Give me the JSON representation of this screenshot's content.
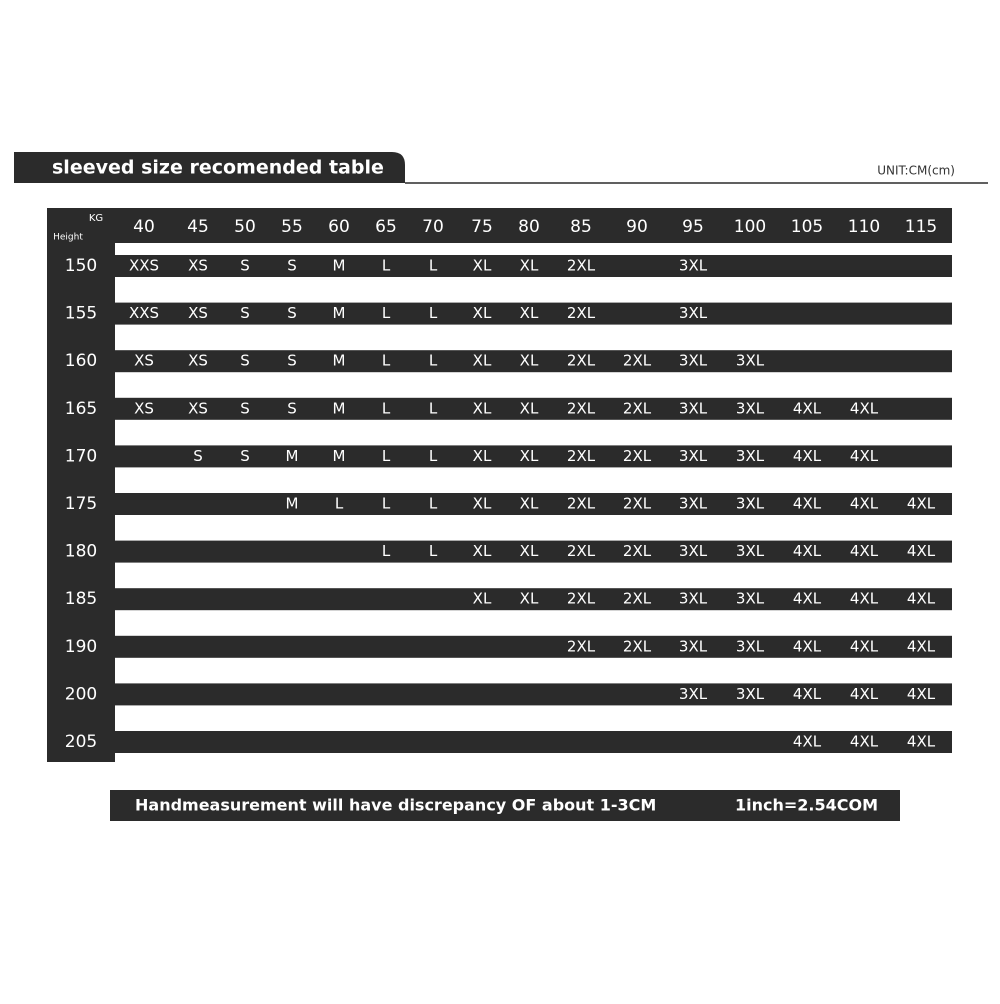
{
  "header": {
    "title": "sleeved size recomended table",
    "unit": "UNIT:CM(cm)"
  },
  "table": {
    "corner_top": "KG",
    "corner_bottom": "Height",
    "columns": [
      "40",
      "45",
      "50",
      "55",
      "60",
      "65",
      "70",
      "75",
      "80",
      "85",
      "90",
      "95",
      "100",
      "105",
      "110",
      "115"
    ],
    "row_labels": [
      "150",
      "155",
      "160",
      "165",
      "170",
      "175",
      "180",
      "185",
      "190",
      "200",
      "205"
    ],
    "rows": [
      [
        "XXS",
        "XS",
        "S",
        "S",
        "M",
        "L",
        "L",
        "XL",
        "XL",
        "2XL",
        null,
        "3XL",
        null,
        null,
        null,
        null
      ],
      [
        "XXS",
        "XS",
        "S",
        "S",
        "M",
        "L",
        "L",
        "XL",
        "XL",
        "2XL",
        null,
        "3XL",
        null,
        null,
        null,
        null
      ],
      [
        "XS",
        "XS",
        "S",
        "S",
        "M",
        "L",
        "L",
        "XL",
        "XL",
        "2XL",
        "2XL",
        "3XL",
        "3XL",
        null,
        null,
        null
      ],
      [
        "XS",
        "XS",
        "S",
        "S",
        "M",
        "L",
        "L",
        "XL",
        "XL",
        "2XL",
        "2XL",
        "3XL",
        "3XL",
        "4XL",
        "4XL",
        null
      ],
      [
        null,
        "S",
        "S",
        "M",
        "M",
        "L",
        "L",
        "XL",
        "XL",
        "2XL",
        "2XL",
        "3XL",
        "3XL",
        "4XL",
        "4XL",
        null
      ],
      [
        null,
        null,
        null,
        "M",
        "L",
        "L",
        "L",
        "XL",
        "XL",
        "2XL",
        "2XL",
        "3XL",
        "3XL",
        "4XL",
        "4XL",
        "4XL"
      ],
      [
        null,
        null,
        null,
        null,
        null,
        "L",
        "L",
        "XL",
        "XL",
        "2XL",
        "2XL",
        "3XL",
        "3XL",
        "4XL",
        "4XL",
        "4XL"
      ],
      [
        null,
        null,
        null,
        null,
        null,
        null,
        null,
        "XL",
        "XL",
        "2XL",
        "2XL",
        "3XL",
        "3XL",
        "4XL",
        "4XL",
        "4XL"
      ],
      [
        null,
        null,
        null,
        null,
        null,
        null,
        null,
        null,
        null,
        "2XL",
        "2XL",
        "3XL",
        "3XL",
        "4XL",
        "4XL",
        "4XL"
      ],
      [
        null,
        null,
        null,
        null,
        null,
        null,
        null,
        null,
        null,
        null,
        null,
        "3XL",
        "3XL",
        "4XL",
        "4XL",
        "4XL"
      ],
      [
        null,
        null,
        null,
        null,
        null,
        null,
        null,
        null,
        null,
        null,
        null,
        null,
        null,
        "4XL",
        "4XL",
        "4XL"
      ]
    ]
  },
  "footer": {
    "note": "Handmeasurement will have discrepancy OF about 1-3CM",
    "conversion": "1inch=2.54COM"
  }
}
